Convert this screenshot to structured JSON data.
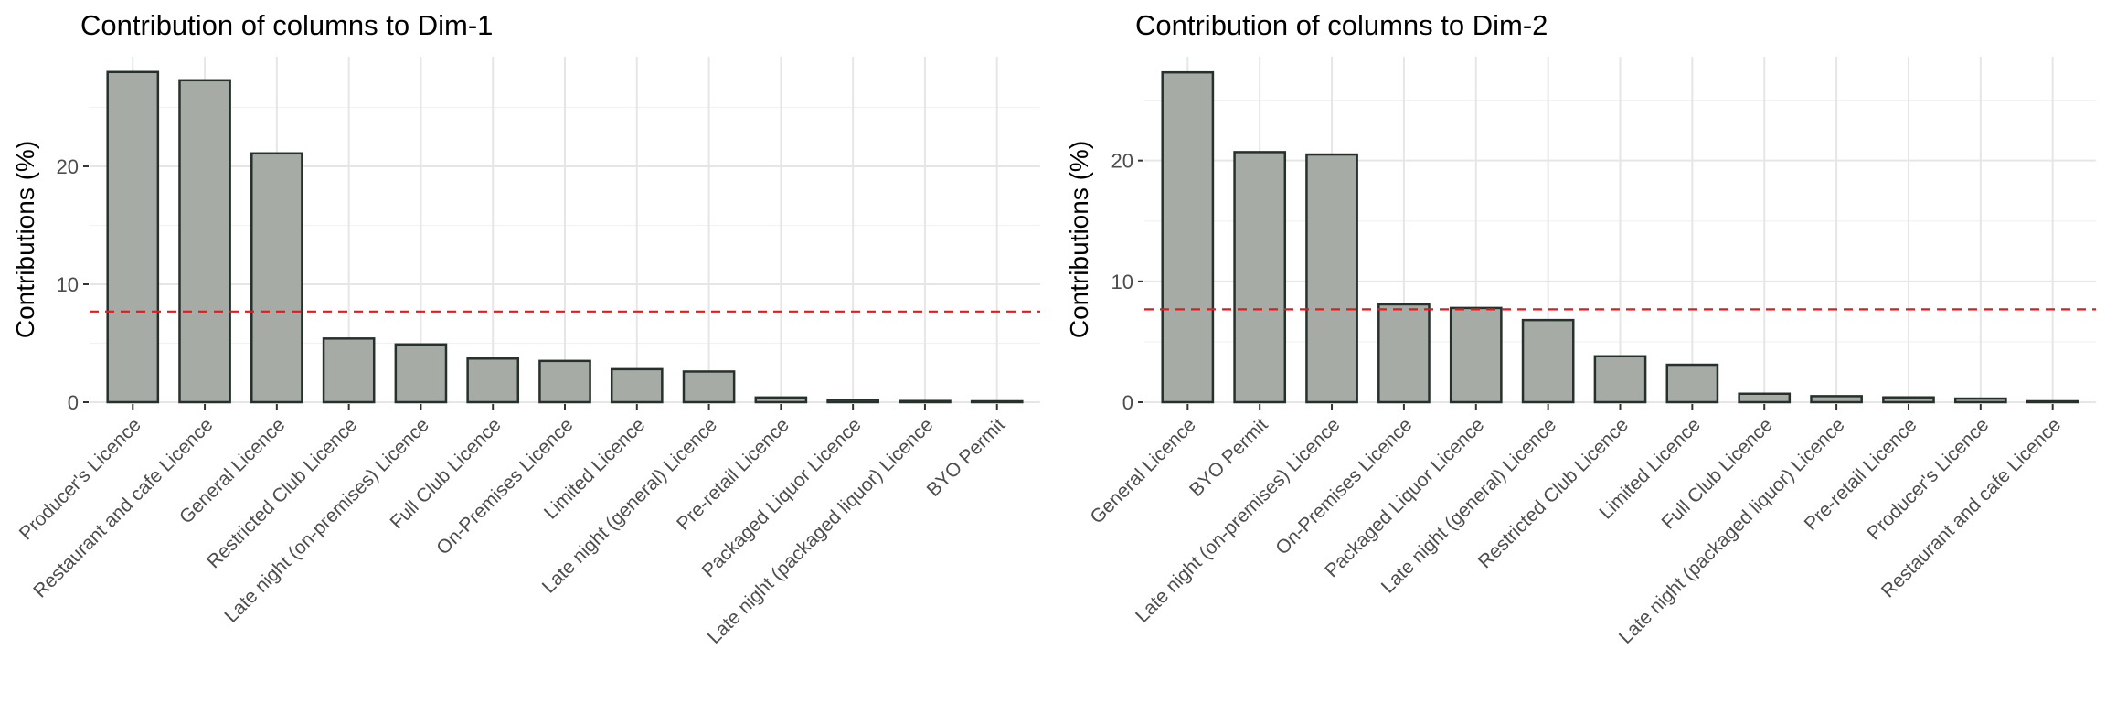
{
  "chart_data": [
    {
      "type": "bar",
      "title": "Contribution of columns to Dim-1",
      "xlabel": "",
      "ylabel": "Contributions (%)",
      "ylim": [
        0,
        29.3
      ],
      "yticks": [
        0,
        10,
        20
      ],
      "reference_line": 7.69,
      "grid": true,
      "categories": [
        "Producer's Licence",
        "Restaurant and cafe Licence",
        "General Licence",
        "Restricted Club Licence",
        "Late night (on-premises) Licence",
        "Full Club Licence",
        "On-Premises Licence",
        "Limited Licence",
        "Late night (general) Licence",
        "Pre-retail Licence",
        "Packaged Liquor Licence",
        "Late night (packaged liquor) Licence",
        "BYO Permit"
      ],
      "values": [
        28.0,
        27.3,
        21.1,
        5.4,
        4.9,
        3.7,
        3.5,
        2.8,
        2.6,
        0.4,
        0.2,
        0.1,
        0.05
      ]
    },
    {
      "type": "bar",
      "title": "Contribution of columns to Dim-2",
      "xlabel": "",
      "ylabel": "Contributions (%)",
      "ylim": [
        0,
        28.6
      ],
      "yticks": [
        0,
        10,
        20
      ],
      "reference_line": 7.69,
      "grid": true,
      "categories": [
        "General Licence",
        "BYO Permit",
        "Late night (on-premises) Licence",
        "On-Premises Licence",
        "Packaged Liquor Licence",
        "Late night (general) Licence",
        "Restricted Club Licence",
        "Limited Licence",
        "Full Club Licence",
        "Late night (packaged liquor) Licence",
        "Pre-retail Licence",
        "Producer's Licence",
        "Restaurant and cafe Licence"
      ],
      "values": [
        27.3,
        20.7,
        20.5,
        8.1,
        7.8,
        6.8,
        3.8,
        3.1,
        0.7,
        0.5,
        0.4,
        0.3,
        0.05
      ]
    }
  ],
  "colors": {
    "bar_fill": "#a6aba6",
    "bar_stroke": "#26312b",
    "reference_line": "#e8181c",
    "grid_major": "#e6e6e6",
    "grid_minor": "#f2f2f2"
  }
}
